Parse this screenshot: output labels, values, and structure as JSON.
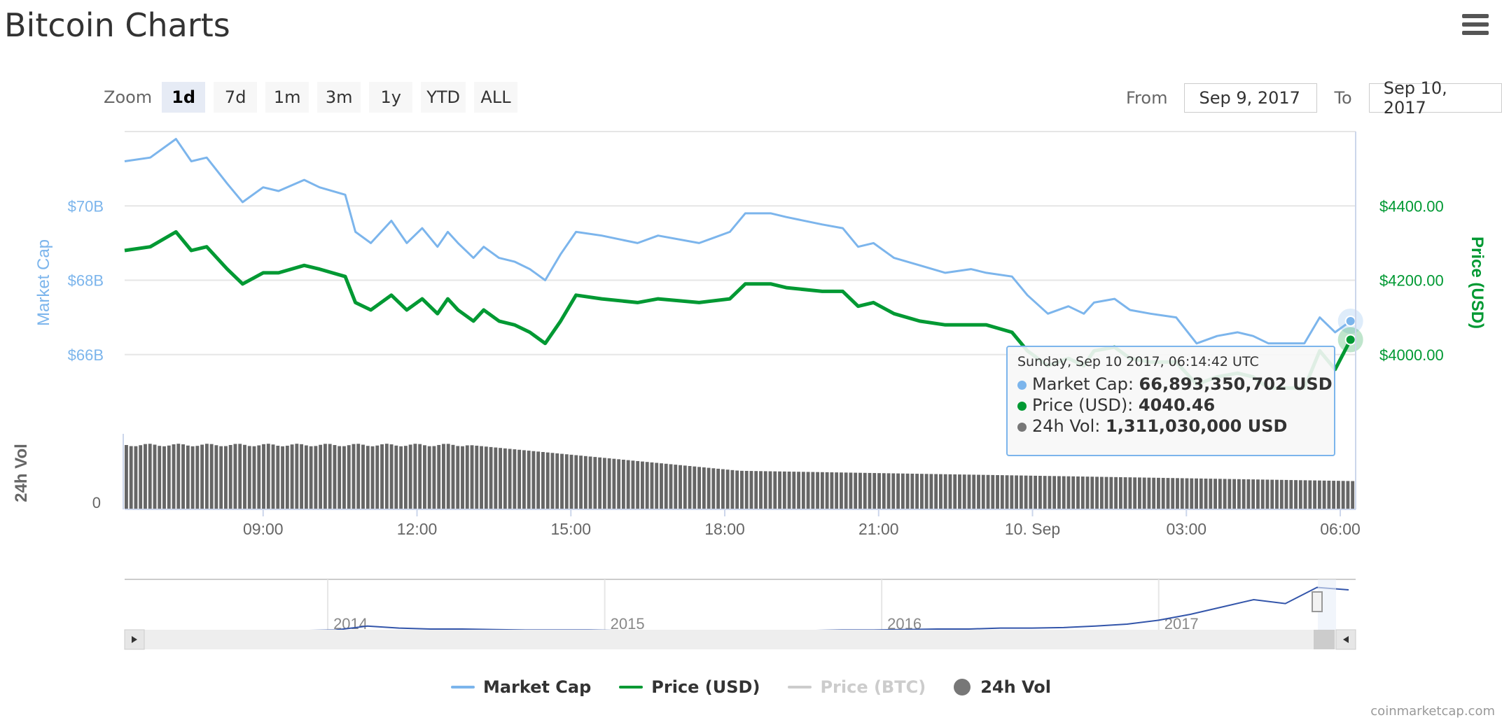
{
  "header": {
    "title": "Bitcoin Charts"
  },
  "watermark": "coinmarketcap.com",
  "zoom": {
    "label": "Zoom",
    "buttons": [
      "1d",
      "7d",
      "1m",
      "3m",
      "1y",
      "YTD",
      "ALL"
    ],
    "active": "1d"
  },
  "range": {
    "from_label": "From",
    "from_value": "Sep 9, 2017",
    "to_label": "To",
    "to_value": "Sep 10, 2017"
  },
  "colors": {
    "market_cap": "#7cb5ec",
    "price_usd": "#009933",
    "price_btc": "#cccccc",
    "volume": "#777777",
    "navigator": "#3355aa"
  },
  "tooltip": {
    "header": "Sunday, Sep 10 2017, 06:14:42 UTC",
    "market_cap_label": "Market Cap: ",
    "market_cap_value": "66,893,350,702 USD",
    "price_label": "Price (USD): ",
    "price_value": "4040.46",
    "volume_label": "24h Vol: ",
    "volume_value": "1,311,030,000 USD"
  },
  "legend": [
    {
      "name": "Market Cap",
      "symbol": "line",
      "color": "#7cb5ec",
      "visible": true
    },
    {
      "name": "Price (USD)",
      "symbol": "line",
      "color": "#009933",
      "visible": true
    },
    {
      "name": "Price (BTC)",
      "symbol": "line",
      "color": "#cccccc",
      "visible": false
    },
    {
      "name": "24h Vol",
      "symbol": "circle",
      "color": "#777777",
      "visible": true
    }
  ],
  "chart_data": {
    "type": "line",
    "x_axis": {
      "start": "06:18",
      "end": "06:18",
      "ticks": [
        "09:00",
        "12:00",
        "15:00",
        "18:00",
        "21:00",
        "10. Sep",
        "03:00",
        "06:00"
      ],
      "range_hours": [
        0,
        24
      ]
    },
    "y_axis_left": {
      "title": "Market Cap",
      "ticks": [
        "$66B",
        "$68B",
        "$70B"
      ],
      "range": [
        64.0,
        72.0
      ]
    },
    "y_axis_right": {
      "title": "Price (USD)",
      "ticks": [
        "$4000.00",
        "$4200.00",
        "$4400.00"
      ],
      "range": [
        3800,
        4600
      ]
    },
    "y_axis_volume": {
      "title": "24h Vol",
      "ticks": [
        "0"
      ]
    },
    "grid": true,
    "series": [
      {
        "name": "Market Cap",
        "axis": "left",
        "unit": "B USD",
        "x": [
          0,
          0.5,
          1,
          1.3,
          1.6,
          2,
          2.3,
          2.7,
          3,
          3.5,
          3.8,
          4.3,
          4.5,
          4.8,
          5.2,
          5.5,
          5.8,
          6.1,
          6.3,
          6.5,
          6.8,
          7.0,
          7.3,
          7.6,
          7.9,
          8.2,
          8.5,
          8.8,
          9.3,
          10.0,
          10.4,
          11.2,
          11.8,
          12.1,
          12.6,
          12.9,
          13.6,
          14.0,
          14.3,
          14.6,
          15.0,
          15.5,
          16.0,
          16.5,
          16.8,
          17.3,
          17.6,
          18.0,
          18.4,
          18.7,
          18.9,
          19.3,
          19.6,
          20.0,
          20.5,
          20.9,
          21.3,
          21.7,
          22.0,
          22.3,
          22.7,
          23.0,
          23.3,
          23.6,
          23.9
        ],
        "y": [
          71.2,
          71.3,
          71.8,
          71.2,
          71.3,
          70.6,
          70.1,
          70.5,
          70.4,
          70.7,
          70.5,
          70.3,
          69.3,
          69.0,
          69.6,
          69.0,
          69.4,
          68.9,
          69.3,
          69.0,
          68.6,
          68.9,
          68.6,
          68.5,
          68.3,
          68.0,
          68.7,
          69.3,
          69.2,
          69.0,
          69.2,
          69.0,
          69.3,
          69.8,
          69.8,
          69.7,
          69.5,
          69.4,
          68.9,
          69.0,
          68.6,
          68.4,
          68.2,
          68.3,
          68.2,
          68.1,
          67.6,
          67.1,
          67.3,
          67.1,
          67.4,
          67.5,
          67.2,
          67.1,
          67.0,
          66.3,
          66.5,
          66.6,
          66.5,
          66.3,
          66.3,
          66.3,
          67.0,
          66.6,
          66.9
        ]
      },
      {
        "name": "Price (USD)",
        "axis": "right",
        "x": [
          0,
          0.5,
          1,
          1.3,
          1.6,
          2,
          2.3,
          2.7,
          3,
          3.5,
          3.8,
          4.3,
          4.5,
          4.8,
          5.2,
          5.5,
          5.8,
          6.1,
          6.3,
          6.5,
          6.8,
          7.0,
          7.3,
          7.6,
          7.9,
          8.2,
          8.5,
          8.8,
          9.3,
          10.0,
          10.4,
          11.2,
          11.8,
          12.1,
          12.6,
          12.9,
          13.6,
          14.0,
          14.3,
          14.6,
          15.0,
          15.5,
          16.0,
          16.5,
          16.8,
          17.3,
          17.6,
          18.0,
          18.4,
          18.7,
          18.9,
          19.3,
          19.6,
          20.0,
          20.5,
          20.9,
          21.3,
          21.7,
          22.0,
          22.3,
          22.7,
          23.0,
          23.3,
          23.6,
          23.9
        ],
        "y": [
          4280,
          4290,
          4330,
          4280,
          4290,
          4230,
          4190,
          4220,
          4220,
          4240,
          4230,
          4210,
          4140,
          4120,
          4160,
          4120,
          4150,
          4110,
          4150,
          4120,
          4090,
          4120,
          4090,
          4080,
          4060,
          4030,
          4090,
          4160,
          4150,
          4140,
          4150,
          4140,
          4150,
          4190,
          4190,
          4180,
          4170,
          4170,
          4130,
          4140,
          4110,
          4090,
          4080,
          4080,
          4080,
          4060,
          4010,
          3970,
          3990,
          3970,
          4010,
          4020,
          3990,
          3980,
          3980,
          3920,
          3940,
          3950,
          3940,
          3910,
          3910,
          3910,
          4010,
          3960,
          4040
        ]
      }
    ],
    "volume": {
      "name": "24h Vol",
      "start_level": 1.0,
      "end_level": 0.44
    },
    "navigator": {
      "labels": [
        "2014",
        "2015",
        "2016",
        "2017"
      ]
    }
  }
}
